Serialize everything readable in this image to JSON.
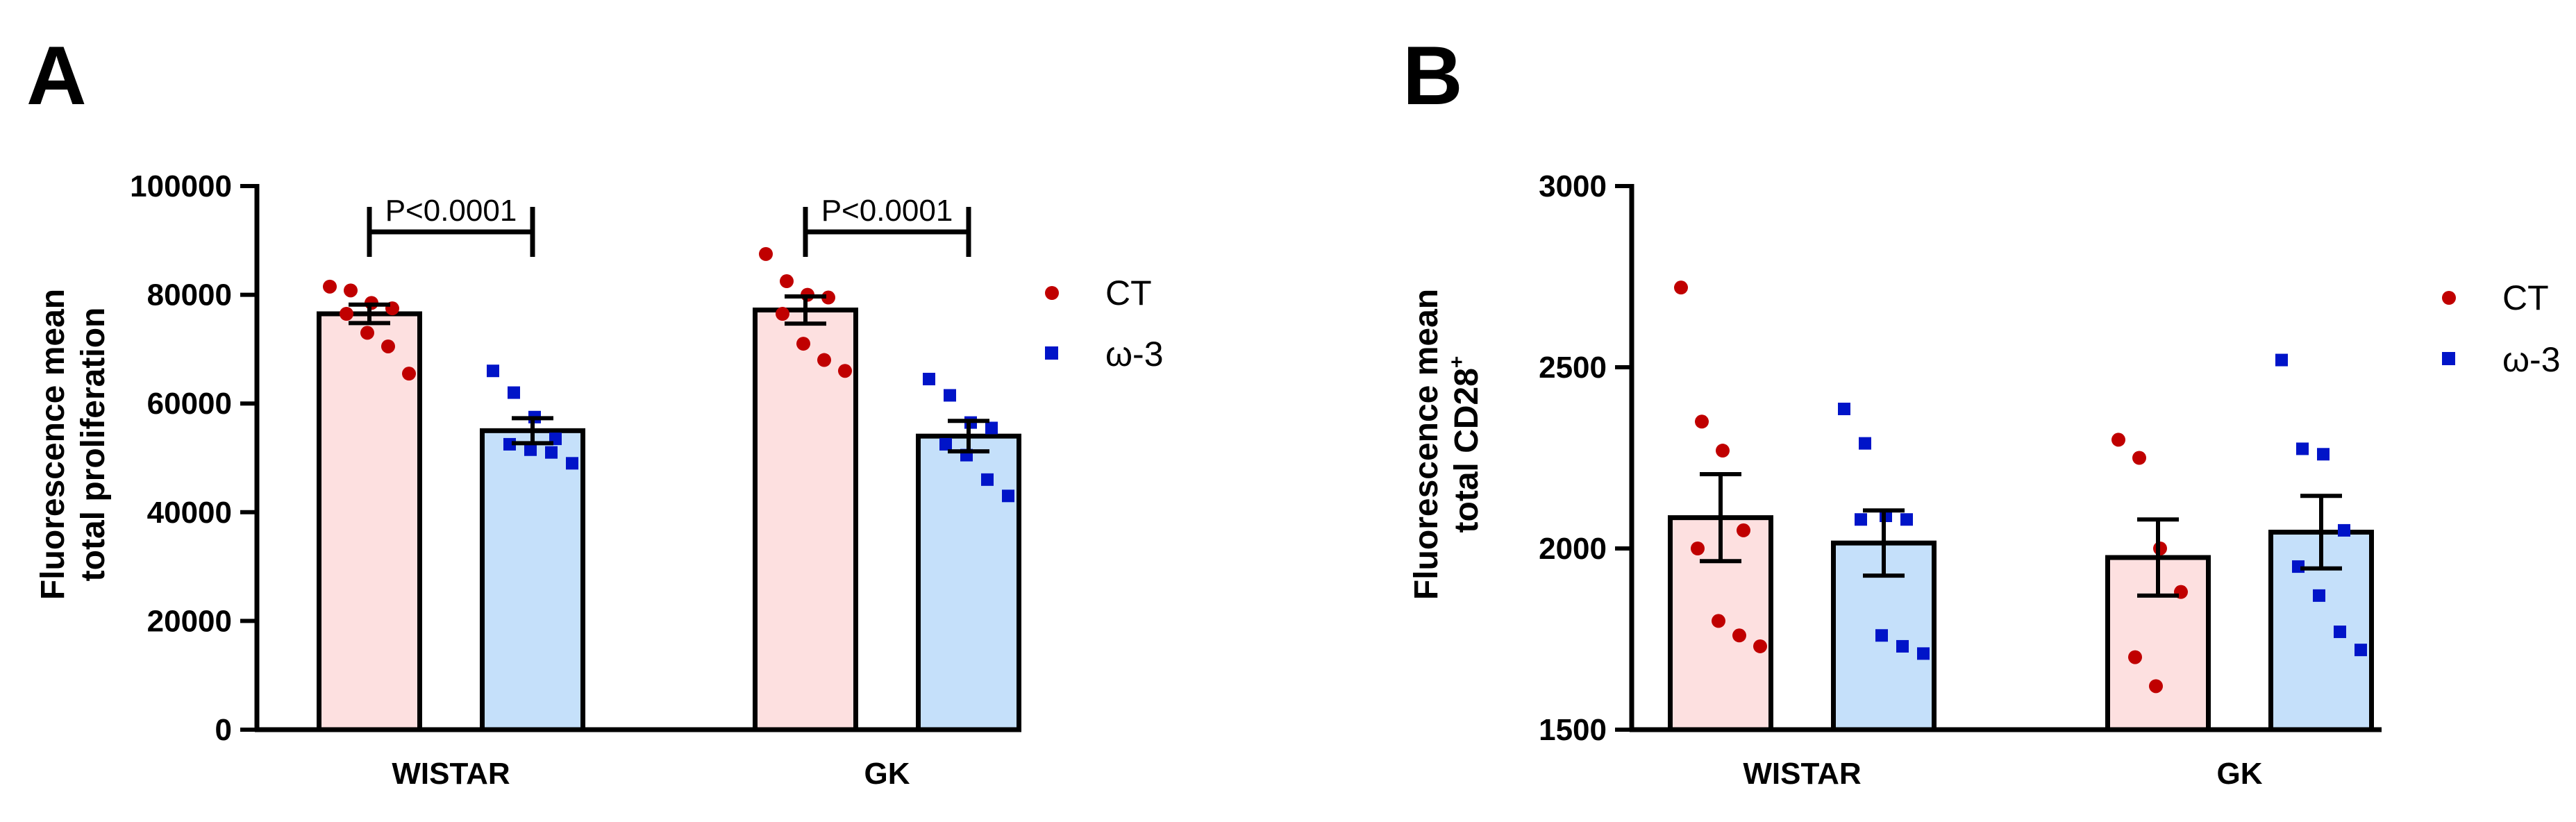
{
  "colors": {
    "ct_fill": "#fde0e0",
    "w3_fill": "#c5e0fa",
    "ct_point": "#c00000",
    "w3_point": "#0014c8",
    "axis": "#000000"
  },
  "legend": {
    "ct_label": "CT",
    "w3_label": "ω-3"
  },
  "chart_data": [
    {
      "panel_label": "A",
      "type": "bar",
      "ylabel_line1": "Fluorescence mean",
      "ylabel_line2": "total proliferation",
      "ylabel_sup": "",
      "ylim": [
        0,
        100000
      ],
      "yticks": [
        0,
        20000,
        40000,
        60000,
        80000,
        100000
      ],
      "ytick_labels": [
        "0",
        "20000",
        "40000",
        "60000",
        "80000",
        "100000"
      ],
      "categories": [
        "WISTAR",
        "GK"
      ],
      "series": [
        {
          "name": "CT",
          "means": [
            76500,
            77200
          ],
          "sem": [
            1700,
            2500
          ],
          "points": [
            [
              81500,
              80800,
              78500,
              77500,
              76500,
              73000,
              70500,
              65500
            ],
            [
              87500,
              82500,
              80000,
              79500,
              76500,
              71000,
              68000,
              66000
            ]
          ]
        },
        {
          "name": "ω-3",
          "means": [
            55000,
            54000
          ],
          "sem": [
            2300,
            2800
          ],
          "points": [
            [
              66000,
              62000,
              57500,
              53500,
              52500,
              51500,
              51000,
              49000
            ],
            [
              64500,
              61500,
              56500,
              55500,
              52500,
              50500,
              46000,
              43000
            ]
          ]
        }
      ],
      "significance": [
        {
          "label": "P<0.0001",
          "category_index": 0
        },
        {
          "label": "P<0.0001",
          "category_index": 1
        }
      ]
    },
    {
      "panel_label": "B",
      "type": "bar",
      "ylabel_line1": "Fluorescence mean",
      "ylabel_line2": "total CD28",
      "ylabel_sup": "+",
      "ylim": [
        1500,
        3000
      ],
      "yticks": [
        1500,
        2000,
        2500,
        3000
      ],
      "ytick_labels": [
        "1500",
        "2000",
        "2500",
        "3000"
      ],
      "categories": [
        "WISTAR",
        "GK"
      ],
      "series": [
        {
          "name": "CT",
          "means": [
            2085,
            1975
          ],
          "sem": [
            120,
            105
          ],
          "points": [
            [
              2720,
              2350,
              2270,
              2050,
              2000,
              1800,
              1760,
              1730
            ],
            [
              2300,
              2250,
              2000,
              1880,
              1700,
              1620
            ]
          ]
        },
        {
          "name": "ω-3",
          "means": [
            2015,
            2045
          ],
          "sem": [
            90,
            100
          ],
          "points": [
            [
              2385,
              2290,
              2090,
              2080,
              2080,
              1760,
              1730,
              1710
            ],
            [
              2520,
              2275,
              2260,
              2050,
              1950,
              1870,
              1770,
              1720
            ]
          ]
        }
      ],
      "significance": []
    }
  ]
}
